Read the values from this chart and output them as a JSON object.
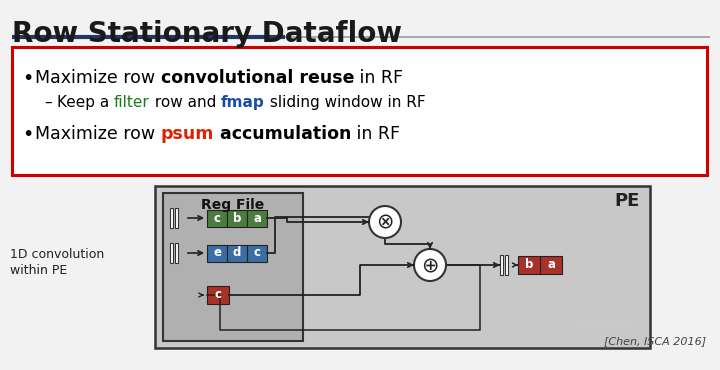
{
  "title": "Row Stationary Dataflow",
  "bg_color": "#f2f2f2",
  "title_color": "#1a1a1a",
  "title_fontsize": 20,
  "underline_dark": "#1f3864",
  "underline_light": "#9999aa",
  "red_box_color": "#cc0000",
  "green_color": "#1a7a1a",
  "blue_color": "#1a4fa0",
  "red_text_color": "#dd2200",
  "citation": "[Chen, ISCA 2016]",
  "side_label1": "1D convolution",
  "side_label2": "within PE",
  "pe_label": "PE",
  "regfile_label": "Reg File",
  "filter_cells": [
    "c",
    "b",
    "a"
  ],
  "fmap_cells": [
    "e",
    "d",
    "c"
  ],
  "psum_cell": "c",
  "output_cells": [
    "b",
    "a"
  ],
  "filter_color": "#4a7c3f",
  "fmap_color": "#3a6ea5",
  "psum_color": "#a83228",
  "output_color": "#a83228",
  "diagram_bg": "#c8c8c8",
  "regfile_bg": "#b0b0b0",
  "wire_color": "#222222"
}
